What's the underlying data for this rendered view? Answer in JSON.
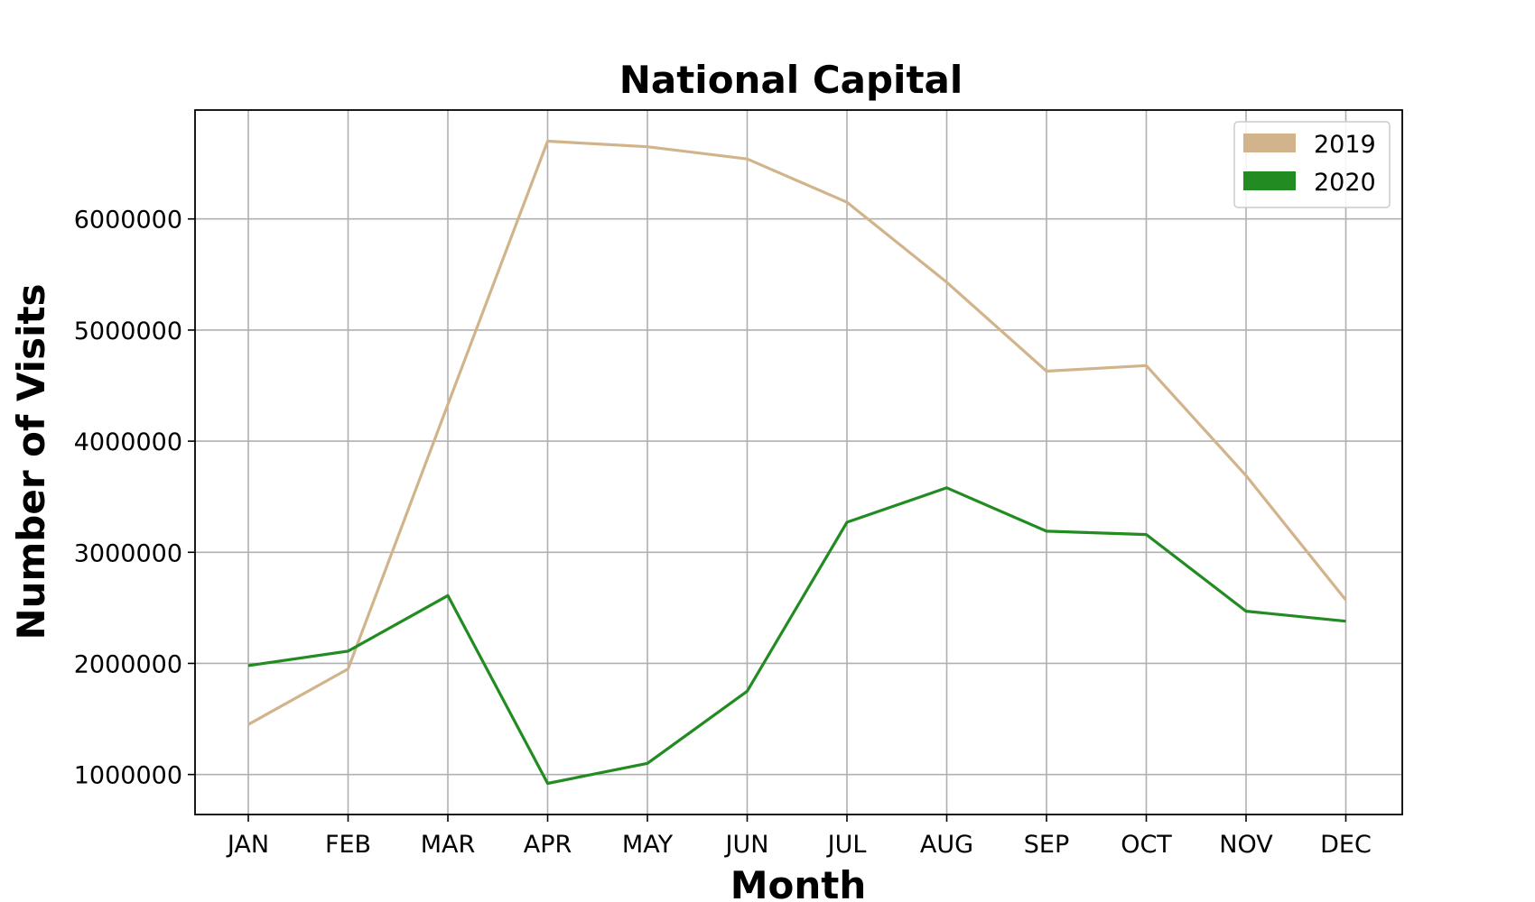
{
  "chart_data": {
    "type": "line",
    "title": "National Capital",
    "xlabel": "Month",
    "ylabel": "Number of Visits",
    "categories": [
      "JAN",
      "FEB",
      "MAR",
      "APR",
      "MAY",
      "JUN",
      "JUL",
      "AUG",
      "SEP",
      "OCT",
      "NOV",
      "DEC"
    ],
    "yticks": [
      1000000,
      2000000,
      3000000,
      4000000,
      5000000,
      6000000
    ],
    "ytick_labels": [
      "1000000",
      "2000000",
      "3000000",
      "4000000",
      "5000000",
      "6000000"
    ],
    "ylim": [
      640000,
      6980000
    ],
    "grid": true,
    "legend_position": "top-right",
    "series": [
      {
        "name": "2019",
        "color": "#d2b48c",
        "values": [
          1450000,
          1950000,
          4330000,
          6700000,
          6650000,
          6540000,
          6150000,
          5430000,
          4630000,
          4680000,
          3690000,
          2570000
        ]
      },
      {
        "name": "2020",
        "color": "#228b22",
        "values": [
          1980000,
          2110000,
          2610000,
          920000,
          1100000,
          1750000,
          3270000,
          3580000,
          3190000,
          3160000,
          2470000,
          2380000
        ]
      }
    ]
  }
}
